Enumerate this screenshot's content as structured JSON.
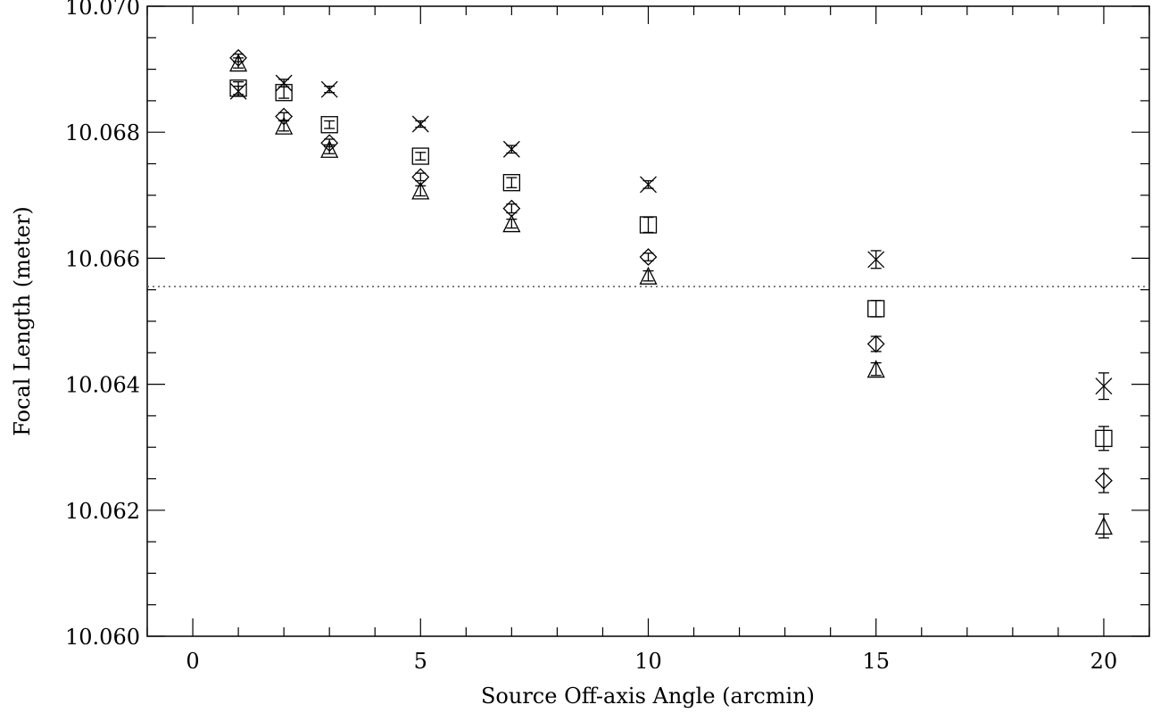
{
  "chart_data": {
    "type": "scatter",
    "title": "",
    "xlabel": "Source Off-axis Angle (arcmin)",
    "ylabel": "Focal Length (meter)",
    "xlim": [
      -1,
      21
    ],
    "ylim": [
      10.06,
      10.07
    ],
    "x_ticks": [
      0,
      5,
      10,
      15,
      20
    ],
    "x_tick_labels": [
      "0",
      "5",
      "10",
      "15",
      "20"
    ],
    "x_minor_step": 1,
    "y_ticks": [
      10.06,
      10.062,
      10.064,
      10.066,
      10.068,
      10.07
    ],
    "y_tick_labels": [
      "10.060",
      "10.062",
      "10.064",
      "10.066",
      "10.068",
      "10.070"
    ],
    "y_minor_step": 0.0005,
    "grid": false,
    "reference_line": {
      "y": 10.06555,
      "style": "dotted"
    },
    "series": [
      {
        "marker": "x",
        "points": [
          {
            "x": 1,
            "y": 10.06865,
            "err": 8e-05
          },
          {
            "x": 2,
            "y": 10.06878,
            "err": 6e-05
          },
          {
            "x": 3,
            "y": 10.06868,
            "err": 5e-05
          },
          {
            "x": 5,
            "y": 10.06813,
            "err": 5e-05
          },
          {
            "x": 7,
            "y": 10.06773,
            "err": 6e-05
          },
          {
            "x": 10,
            "y": 10.06717,
            "err": 6e-05
          },
          {
            "x": 15,
            "y": 10.06598,
            "err": 0.00014
          },
          {
            "x": 20,
            "y": 10.06397,
            "err": 0.00021
          }
        ]
      },
      {
        "marker": "square",
        "points": [
          {
            "x": 1,
            "y": 10.0687,
            "err": 0.0001
          },
          {
            "x": 2,
            "y": 10.06863,
            "err": 9e-05
          },
          {
            "x": 3,
            "y": 10.06812,
            "err": 6e-05
          },
          {
            "x": 5,
            "y": 10.06762,
            "err": 6e-05
          },
          {
            "x": 7,
            "y": 10.0672,
            "err": 8e-05
          },
          {
            "x": 10,
            "y": 10.06653,
            "err": 0.00012
          },
          {
            "x": 15,
            "y": 10.0652,
            "err": 0.00013
          },
          {
            "x": 20,
            "y": 10.06314,
            "err": 0.00019
          }
        ]
      },
      {
        "marker": "diamond",
        "points": [
          {
            "x": 1,
            "y": 10.06918,
            "err": 6e-05
          },
          {
            "x": 2,
            "y": 10.06825,
            "err": 6e-05
          },
          {
            "x": 3,
            "y": 10.06783,
            "err": 6e-05
          },
          {
            "x": 5,
            "y": 10.06729,
            "err": 6e-05
          },
          {
            "x": 7,
            "y": 10.06679,
            "err": 7e-05
          },
          {
            "x": 10,
            "y": 10.06602,
            "err": 6e-05
          },
          {
            "x": 15,
            "y": 10.06464,
            "err": 0.00012
          },
          {
            "x": 20,
            "y": 10.06247,
            "err": 0.00019
          }
        ]
      },
      {
        "marker": "triangle",
        "points": [
          {
            "x": 1,
            "y": 10.0691,
            "err": 8e-05
          },
          {
            "x": 2,
            "y": 10.0681,
            "err": 8e-05
          },
          {
            "x": 3,
            "y": 10.06773,
            "err": 7e-05
          },
          {
            "x": 5,
            "y": 10.06707,
            "err": 8e-05
          },
          {
            "x": 7,
            "y": 10.06655,
            "err": 7e-05
          },
          {
            "x": 10,
            "y": 10.06572,
            "err": 8e-05
          },
          {
            "x": 15,
            "y": 10.06424,
            "err": 0.0001
          },
          {
            "x": 20,
            "y": 10.06175,
            "err": 0.00019
          }
        ]
      }
    ]
  }
}
